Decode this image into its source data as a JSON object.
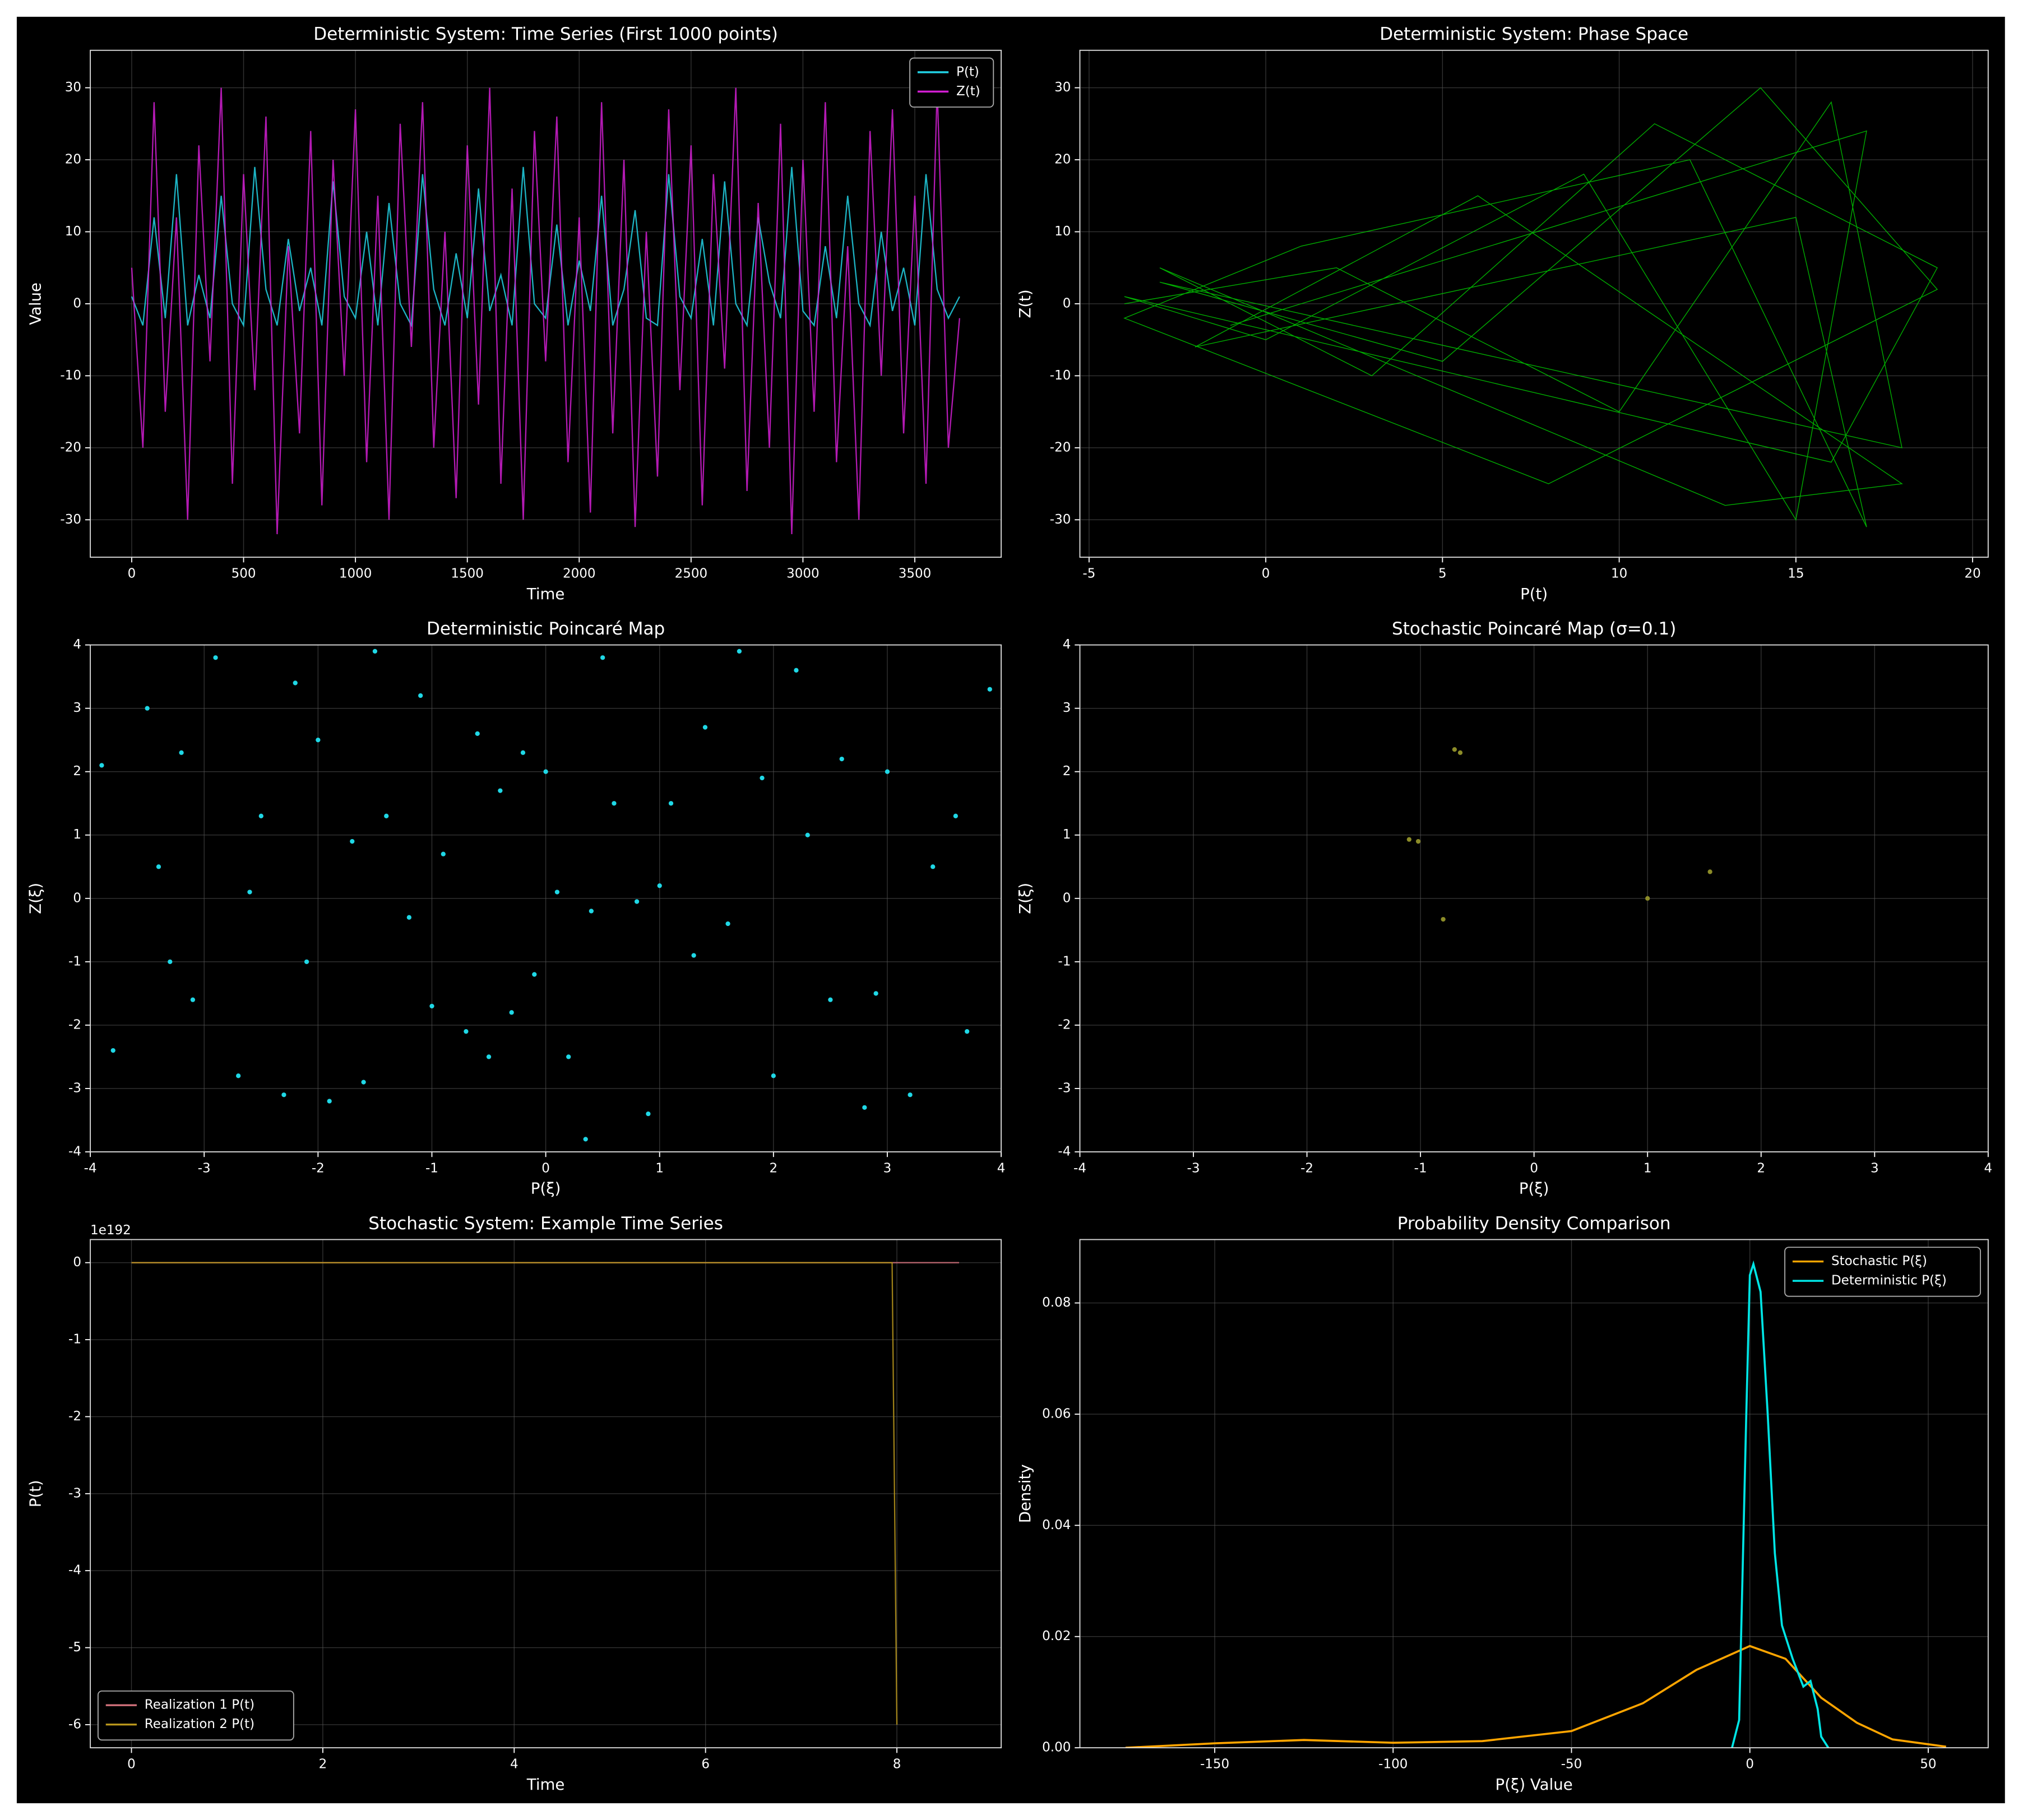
{
  "chart_data": [
    {
      "type": "line",
      "title": "Deterministic System: Time Series (First 1000 points)",
      "xlabel": "Time",
      "ylabel": "Value",
      "x": [
        0,
        50,
        100,
        150,
        200,
        250,
        300,
        350,
        400,
        450,
        500,
        550,
        600,
        650,
        700,
        750,
        800,
        850,
        900,
        950,
        1000,
        1050,
        1100,
        1150,
        1200,
        1250,
        1300,
        1350,
        1400,
        1450,
        1500,
        1550,
        1600,
        1650,
        1700,
        1750,
        1800,
        1850,
        1900,
        1950,
        2000,
        2050,
        2100,
        2150,
        2200,
        2250,
        2300,
        2350,
        2400,
        2450,
        2500,
        2550,
        2600,
        2650,
        2700,
        2750,
        2800,
        2850,
        2900,
        2950,
        3000,
        3050,
        3100,
        3150,
        3200,
        3250,
        3300,
        3350,
        3400,
        3450,
        3500,
        3550,
        3600,
        3650,
        3700
      ],
      "series": [
        {
          "name": "P(t)",
          "color": "#22d3e6",
          "values": [
            1,
            -3,
            12,
            -2,
            18,
            -3,
            4,
            -2,
            15,
            0,
            -3,
            19,
            2,
            -3,
            9,
            -1,
            5,
            -3,
            17,
            1,
            -2,
            10,
            -3,
            14,
            0,
            -3,
            18,
            2,
            -3,
            7,
            -2,
            16,
            -1,
            4,
            -3,
            19,
            0,
            -2,
            11,
            -3,
            6,
            -1,
            15,
            -3,
            2,
            13,
            -2,
            -3,
            18,
            1,
            -2,
            9,
            -3,
            17,
            0,
            -3,
            12,
            3,
            -2,
            19,
            -1,
            -3,
            8,
            -2,
            15,
            0,
            -3,
            10,
            -1,
            5,
            -3,
            18,
            2,
            -2,
            1
          ]
        },
        {
          "name": "Z(t)",
          "color": "#d21ed2",
          "values": [
            5,
            -20,
            28,
            -15,
            12,
            -30,
            22,
            -8,
            30,
            -25,
            18,
            -12,
            26,
            -32,
            8,
            -18,
            24,
            -28,
            20,
            -10,
            27,
            -22,
            15,
            -30,
            25,
            -6,
            28,
            -20,
            10,
            -27,
            22,
            -14,
            30,
            -25,
            16,
            -30,
            24,
            -8,
            26,
            -22,
            12,
            -29,
            28,
            -18,
            20,
            -31,
            10,
            -24,
            27,
            -12,
            22,
            -28,
            18,
            -9,
            30,
            -26,
            14,
            -20,
            25,
            -32,
            20,
            -15,
            28,
            -22,
            8,
            -30,
            24,
            -10,
            27,
            -18,
            15,
            -25,
            30,
            -20,
            -2
          ]
        }
      ],
      "xlim": [
        -185,
        3886
      ],
      "ylim": [
        -35.2,
        35.2
      ],
      "xticks": [
        0,
        500,
        1000,
        1500,
        2000,
        2500,
        3000,
        3500
      ],
      "yticks": [
        -30,
        -20,
        -10,
        0,
        10,
        20,
        30
      ],
      "grid": true,
      "legend": "upper right"
    },
    {
      "type": "line",
      "title": "Deterministic System: Phase Space",
      "xlabel": "P(t)",
      "ylabel": "Z(t)",
      "series": [
        {
          "color": "#00cc00",
          "x": [
            -4,
            2,
            10,
            16,
            18,
            -3,
            5,
            14,
            19,
            8,
            -4,
            1,
            12,
            17,
            15,
            -2,
            6,
            18,
            13,
            -3,
            3,
            11,
            19,
            16,
            -4,
            0,
            9,
            15,
            17,
            -1
          ],
          "values": [
            0,
            5,
            -15,
            28,
            -20,
            3,
            -8,
            30,
            2,
            -25,
            -2,
            8,
            20,
            -31,
            12,
            -6,
            15,
            -25,
            -28,
            5,
            -10,
            25,
            5,
            -22,
            1,
            -5,
            18,
            -30,
            24,
            -3
          ]
        }
      ],
      "xlim": [
        -5.26,
        20.44
      ],
      "ylim": [
        -35.2,
        35.2
      ],
      "xticks": [
        -5,
        0,
        5,
        10,
        15,
        20
      ],
      "yticks": [
        -30,
        -20,
        -10,
        0,
        10,
        20,
        30
      ],
      "grid": true
    },
    {
      "type": "scatter",
      "title": "Deterministic Poincaré Map",
      "xlabel": "P(ξ)",
      "ylabel": "Z(ξ)",
      "series": [
        {
          "color": "#1fd8e6",
          "x": [
            -3.9,
            -3.8,
            -3.5,
            -3.4,
            -3.3,
            -3.2,
            -3.1,
            -2.9,
            -2.7,
            -2.6,
            -2.5,
            -2.3,
            -2.2,
            -2.1,
            -2.0,
            -1.9,
            -1.7,
            -1.6,
            -1.5,
            -1.4,
            -1.2,
            -1.1,
            -1.0,
            -0.9,
            -0.7,
            -0.6,
            -0.5,
            -0.4,
            -0.3,
            -0.2,
            -0.1,
            0.0,
            0.1,
            0.2,
            0.35,
            0.4,
            0.5,
            0.6,
            0.8,
            0.9,
            1.0,
            1.1,
            1.3,
            1.4,
            1.6,
            1.7,
            1.9,
            2.0,
            2.2,
            2.3,
            2.5,
            2.6,
            2.8,
            2.9,
            3.0,
            3.2,
            3.4,
            3.6,
            3.7,
            3.9
          ],
          "values": [
            2.1,
            -2.4,
            3.0,
            0.5,
            -1.0,
            2.3,
            -1.6,
            3.8,
            -2.8,
            0.1,
            1.3,
            -3.1,
            3.4,
            -1.0,
            2.5,
            -3.2,
            0.9,
            -2.9,
            3.9,
            1.3,
            -0.3,
            3.2,
            -1.7,
            0.7,
            -2.1,
            2.6,
            -2.5,
            1.7,
            -1.8,
            2.3,
            -1.2,
            2.0,
            0.1,
            -2.5,
            -3.8,
            -0.2,
            3.8,
            1.5,
            -0.05,
            -3.4,
            0.2,
            1.5,
            -0.9,
            2.7,
            -0.4,
            3.9,
            1.9,
            -2.8,
            3.6,
            1.0,
            -1.6,
            2.2,
            -3.3,
            -1.5,
            2.0,
            -3.1,
            0.5,
            1.3,
            -2.1,
            3.3
          ]
        }
      ],
      "xlim": [
        -4,
        4
      ],
      "ylim": [
        -4,
        4
      ],
      "xticks": [
        -4,
        -3,
        -2,
        -1,
        0,
        1,
        2,
        3,
        4
      ],
      "yticks": [
        -4,
        -3,
        -2,
        -1,
        0,
        1,
        2,
        3,
        4
      ],
      "grid": true
    },
    {
      "type": "scatter",
      "title": "Stochastic Poincaré Map (σ=0.1)",
      "xlabel": "P(ξ)",
      "ylabel": "Z(ξ)",
      "series": [
        {
          "color": "#8c8c28",
          "x": [
            -0.7,
            -0.65,
            -1.1,
            -1.02,
            -0.8,
            1.0,
            1.55
          ],
          "values": [
            2.35,
            2.3,
            0.93,
            0.9,
            -0.33,
            0.0,
            0.42
          ]
        }
      ],
      "xlim": [
        -4,
        4
      ],
      "ylim": [
        -4,
        4
      ],
      "xticks": [
        -4,
        -3,
        -2,
        -1,
        0,
        1,
        2,
        3,
        4
      ],
      "yticks": [
        -4,
        -3,
        -2,
        -1,
        0,
        1,
        2,
        3,
        4
      ],
      "grid": true
    },
    {
      "type": "line",
      "title": "Stochastic System: Example Time Series",
      "xlabel": "Time",
      "ylabel": "P(t)",
      "y_offset": "1e192",
      "series": [
        {
          "name": "Realization 1 P(t)",
          "color": "#d0707a",
          "x": [
            0,
            8.65
          ],
          "values": [
            0,
            0
          ]
        },
        {
          "name": "Realization 2 P(t)",
          "color": "#b8961c",
          "x": [
            0,
            7.95,
            8.0
          ],
          "values": [
            0,
            0,
            -6
          ]
        }
      ],
      "xlim": [
        -0.43,
        9.09
      ],
      "ylim": [
        -6.3,
        0.3
      ],
      "xticks": [
        0,
        2,
        4,
        6,
        8
      ],
      "yticks": [
        -6,
        -5,
        -4,
        -3,
        -2,
        -1,
        0
      ],
      "grid": true,
      "legend": "lower left"
    },
    {
      "type": "line",
      "title": "Probability Density Comparison",
      "xlabel": "P(ξ) Value",
      "ylabel": "Density",
      "series": [
        {
          "name": "Stochastic P(ξ)",
          "color": "#ffa500",
          "x": [
            -175,
            -150,
            -125,
            -100,
            -75,
            -50,
            -30,
            -15,
            0,
            10,
            20,
            30,
            40,
            55
          ],
          "values": [
            0.0,
            0.0008,
            0.0014,
            0.0009,
            0.0012,
            0.003,
            0.008,
            0.014,
            0.0183,
            0.016,
            0.009,
            0.0045,
            0.0015,
            0.0002
          ]
        },
        {
          "name": "Deterministic P(ξ)",
          "color": "#00e5e5",
          "x": [
            -5,
            -3,
            -1,
            0,
            1,
            3,
            5,
            7,
            9,
            12,
            15,
            17,
            19,
            20,
            22
          ],
          "values": [
            0,
            0.005,
            0.06,
            0.085,
            0.087,
            0.082,
            0.06,
            0.035,
            0.022,
            0.016,
            0.011,
            0.012,
            0.007,
            0.002,
            0
          ]
        }
      ],
      "xlim": [
        -187.8,
        66.8
      ],
      "ylim": [
        0,
        0.0914
      ],
      "xticks": [
        -150,
        -100,
        -50,
        0,
        50
      ],
      "yticks": [
        {
          "value": 0,
          "label": "0.00"
        },
        {
          "value": 0.02,
          "label": "0.02"
        },
        {
          "value": 0.04,
          "label": "0.04"
        },
        {
          "value": 0.06,
          "label": "0.06"
        },
        {
          "value": 0.08,
          "label": "0.08"
        }
      ],
      "grid": true,
      "legend": "upper right"
    }
  ]
}
